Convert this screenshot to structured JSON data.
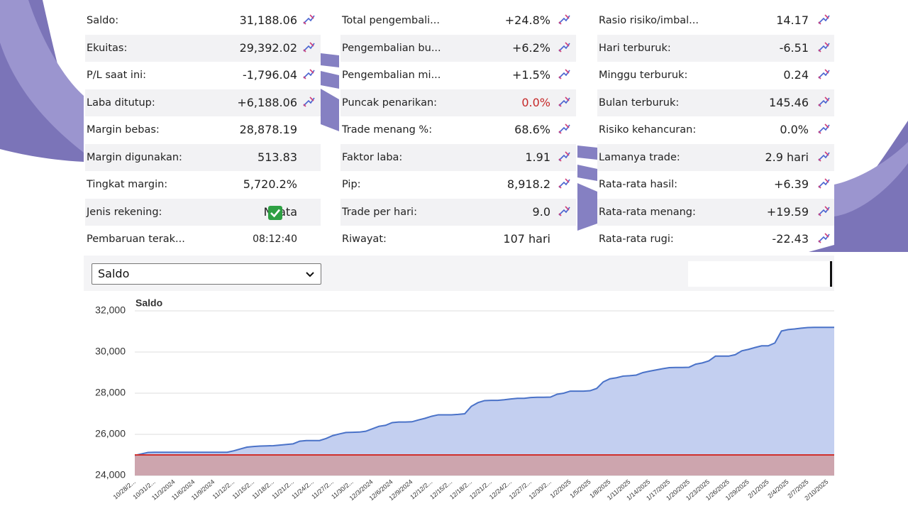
{
  "stats": {
    "columns": [
      [
        {
          "label": "Saldo:",
          "value": "31,188.06"
        },
        {
          "label": "Ekuitas:",
          "value": "29,392.02"
        },
        {
          "label": "P/L saat ini:",
          "value": "-1,796.04"
        },
        {
          "label": "Laba ditutup:",
          "value": "+6,188.06"
        },
        {
          "label": "Margin bebas:",
          "value": "28,878.19"
        },
        {
          "label": "Margin digunakan:",
          "value": "513.83"
        },
        {
          "label": "Tingkat margin:",
          "value": "5,720.2%"
        },
        {
          "label": "Jenis rekening:",
          "value": "Nyata"
        },
        {
          "label": "Pembaruan terak...",
          "value": "08:12:40"
        }
      ],
      [
        {
          "label": "Total pengembali...",
          "value": "+24.8%"
        },
        {
          "label": "Pengembalian bu...",
          "value": "+6.2%"
        },
        {
          "label": "Pengembalian mi...",
          "value": "+1.5%"
        },
        {
          "label": "Puncak penarikan:",
          "value": "0.0%",
          "value_color": "#c62828"
        },
        {
          "label": "Trade menang %:",
          "value": "68.6%"
        },
        {
          "label": "Faktor laba:",
          "value": "1.91"
        },
        {
          "label": "Pip:",
          "value": "8,918.2"
        },
        {
          "label": "Trade per hari:",
          "value": "9.0"
        },
        {
          "label": "Riwayat:",
          "value": "107 hari"
        }
      ],
      [
        {
          "label": "Rasio risiko/imbal...",
          "value": "14.17"
        },
        {
          "label": "Hari terburuk:",
          "value": "-6.51"
        },
        {
          "label": "Minggu terburuk:",
          "value": "0.24"
        },
        {
          "label": "Bulan terburuk:",
          "value": "145.46"
        },
        {
          "label": "Risiko kehancuran:",
          "value": "0.0%"
        },
        {
          "label": "Lamanya trade:",
          "value": "2.9 hari"
        },
        {
          "label": "Rata-rata hasil:",
          "value": "+6.39"
        },
        {
          "label": "Rata-rata menang:",
          "value": "+19.59"
        },
        {
          "label": "Rata-rata rugi:",
          "value": "-22.43"
        }
      ]
    ]
  },
  "dropdown": {
    "selected": "Saldo"
  },
  "chart_data": {
    "type": "area",
    "title": "Saldo",
    "categories": [
      "10/28/2...",
      null,
      null,
      "10/31/2...",
      null,
      null,
      "11/3/2024",
      null,
      null,
      "11/6/2024",
      null,
      null,
      "11/9/2024",
      null,
      null,
      "11/12/2...",
      null,
      null,
      "11/15/2...",
      null,
      null,
      "11/18/2...",
      null,
      null,
      "11/21/2...",
      null,
      null,
      "11/24/2...",
      null,
      null,
      "11/27/2...",
      null,
      null,
      "11/30/2...",
      null,
      null,
      "12/3/2024",
      null,
      null,
      "12/6/2024",
      null,
      null,
      "12/9/2024",
      null,
      null,
      "12/12/2...",
      null,
      null,
      "12/15/2...",
      null,
      null,
      "12/18/2...",
      null,
      null,
      "12/21/2...",
      null,
      null,
      "12/24/2...",
      null,
      null,
      "12/27/2...",
      null,
      null,
      "12/30/2...",
      null,
      null,
      "1/2/2025",
      null,
      null,
      "1/5/2025",
      null,
      null,
      "1/8/2025",
      null,
      null,
      "1/11/2025",
      null,
      null,
      "1/14/2025",
      null,
      null,
      "1/17/2025",
      null,
      null,
      "1/20/2025",
      null,
      null,
      "1/23/2025",
      null,
      null,
      "1/26/2025",
      null,
      null,
      "1/29/2025",
      null,
      null,
      "2/1/2025",
      null,
      null,
      "2/4/2025",
      null,
      null,
      "2/7/2025",
      null,
      null,
      "2/10/2025",
      null
    ],
    "values": [
      24980,
      25050,
      25120,
      25130,
      25130,
      25130,
      25130,
      25130,
      25130,
      25130,
      25130,
      25130,
      25130,
      25130,
      25130,
      25200,
      25290,
      25380,
      25410,
      25430,
      25440,
      25450,
      25480,
      25510,
      25540,
      25670,
      25700,
      25700,
      25700,
      25800,
      25940,
      26020,
      26090,
      26100,
      26110,
      26150,
      26270,
      26390,
      26440,
      26570,
      26600,
      26600,
      26610,
      26700,
      26780,
      26880,
      26950,
      26950,
      26950,
      26970,
      27000,
      27360,
      27540,
      27640,
      27650,
      27650,
      27680,
      27720,
      27750,
      27750,
      27790,
      27800,
      27800,
      27810,
      27950,
      28000,
      28100,
      28100,
      28100,
      28120,
      28230,
      28550,
      28700,
      28750,
      28830,
      28850,
      28880,
      29000,
      29070,
      29130,
      29190,
      29240,
      29250,
      29250,
      29260,
      29410,
      29470,
      29570,
      29800,
      29800,
      29800,
      29870,
      30060,
      30130,
      30220,
      30300,
      30300,
      30440,
      31020,
      31090,
      31120,
      31160,
      31190,
      31200,
      31200,
      31200,
      31200
    ],
    "color": "#4a72c8",
    "fill": "#c3cff0",
    "reference_line": {
      "value": 25000,
      "color": "#d0312d",
      "fill": "#cda5ae"
    },
    "ylim": [
      24000,
      32000
    ],
    "yticks": [
      {
        "value": 24000,
        "label": "24,000"
      },
      {
        "value": 26000,
        "label": "26,000"
      },
      {
        "value": 28000,
        "label": "28,000"
      },
      {
        "value": 30000,
        "label": "30,000"
      },
      {
        "value": 32000,
        "label": "32,000"
      }
    ],
    "grid": true
  }
}
